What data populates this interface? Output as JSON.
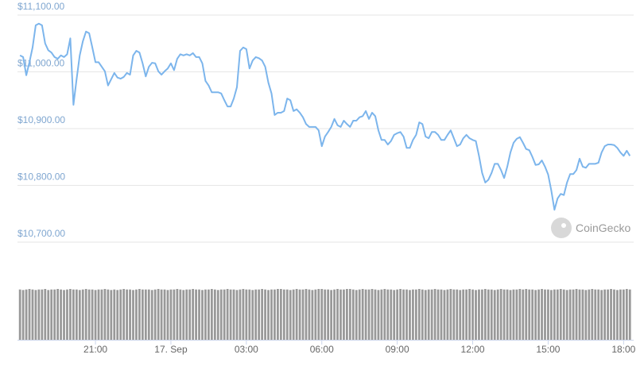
{
  "chart_data": {
    "type": "line",
    "x": [
      0,
      0.125,
      0.25,
      0.375,
      0.5,
      0.625,
      0.75,
      0.875,
      1,
      1.125,
      1.25,
      1.375,
      1.5,
      1.625,
      1.75,
      1.875,
      2,
      2.125,
      2.25,
      2.375,
      2.5,
      2.625,
      2.75,
      2.875,
      3,
      3.125,
      3.25,
      3.375,
      3.5,
      3.625,
      3.75,
      3.875,
      4,
      4.125,
      4.25,
      4.375,
      4.5,
      4.625,
      4.75,
      4.875,
      5,
      5.125,
      5.25,
      5.375,
      5.5,
      5.625,
      5.75,
      5.875,
      6,
      6.125,
      6.25,
      6.375,
      6.5,
      6.625,
      6.75,
      6.875,
      7,
      7.125,
      7.25,
      7.375,
      7.5,
      7.625,
      7.75,
      7.875,
      8,
      8.125,
      8.25,
      8.375,
      8.5,
      8.625,
      8.75,
      8.875,
      9,
      9.125,
      9.25,
      9.375,
      9.5,
      9.625,
      9.75,
      9.875,
      10,
      10.125,
      10.25,
      10.375,
      10.5,
      10.625,
      10.75,
      10.875,
      11,
      11.125,
      11.25,
      11.375,
      11.5,
      11.625,
      11.75,
      11.875,
      12,
      12.125,
      12.25,
      12.375,
      12.5,
      12.625,
      12.75,
      12.875,
      13,
      13.125,
      13.25,
      13.375,
      13.5,
      13.625,
      13.75,
      13.875,
      14,
      14.125,
      14.25,
      14.375,
      14.5,
      14.625,
      14.75,
      14.875,
      15,
      15.125,
      15.25,
      15.375,
      15.5,
      15.625,
      15.75,
      15.875,
      16,
      16.125,
      16.25,
      16.375,
      16.5,
      16.625,
      16.75,
      16.875,
      17,
      17.125,
      17.25,
      17.375,
      17.5,
      17.625,
      17.75,
      17.875,
      18,
      18.125,
      18.25,
      18.375,
      18.5,
      18.625,
      18.75,
      18.875,
      19,
      19.125,
      19.25,
      19.375,
      19.5,
      19.625,
      19.75,
      19.875,
      20,
      20.125,
      20.25,
      20.375,
      20.5,
      20.625,
      20.75,
      20.875,
      21,
      21.125,
      21.25,
      21.375,
      21.5,
      21.625,
      21.75,
      21.875,
      22,
      22.125,
      22.25,
      22.375,
      22.5,
      22.625,
      22.75,
      22.875,
      23,
      23.125,
      23.25,
      23.375,
      23.5,
      23.625,
      23.75,
      23.875,
      24,
      24.125,
      24.25
    ],
    "series": [
      {
        "color": "#7cb5ec",
        "values": [
          11029,
          11026,
          10994,
          11017,
          11043,
          11082,
          11085,
          11082,
          11050,
          11038,
          11034,
          11026,
          11023,
          11029,
          11026,
          11031,
          11059,
          10942,
          10987,
          11029,
          11054,
          11071,
          11068,
          11043,
          11017,
          11017,
          11009,
          11001,
          10976,
          10987,
          10998,
          10990,
          10988,
          10991,
          10998,
          10995,
          11029,
          11037,
          11034,
          11015,
          10992,
          11009,
          11016,
          11015,
          11001,
          10995,
          11001,
          11006,
          11015,
          11003,
          11023,
          11031,
          11029,
          11031,
          11029,
          11033,
          11026,
          11026,
          11015,
          10984,
          10976,
          10964,
          10964,
          10964,
          10962,
          10950,
          10939,
          10939,
          10953,
          10973,
          11037,
          11043,
          11040,
          11006,
          11020,
          11026,
          11024,
          11020,
          11009,
          10981,
          10962,
          10924,
          10928,
          10928,
          10931,
          10953,
          10950,
          10931,
          10934,
          10928,
          10920,
          10908,
          10903,
          10903,
          10903,
          10897,
          10869,
          10886,
          10894,
          10903,
          10917,
          10906,
          10903,
          10914,
          10908,
          10903,
          10914,
          10914,
          10920,
          10922,
          10931,
          10917,
          10928,
          10922,
          10897,
          10880,
          10880,
          10872,
          10878,
          10889,
          10892,
          10894,
          10886,
          10866,
          10866,
          10880,
          10889,
          10911,
          10908,
          10886,
          10883,
          10894,
          10894,
          10889,
          10880,
          10880,
          10889,
          10897,
          10883,
          10869,
          10872,
          10883,
          10889,
          10883,
          10880,
          10878,
          10852,
          10822,
          10805,
          10810,
          10822,
          10838,
          10838,
          10827,
          10813,
          10833,
          10858,
          10875,
          10882,
          10885,
          10875,
          10864,
          10862,
          10850,
          10836,
          10837,
          10844,
          10833,
          10819,
          10791,
          10757,
          10777,
          10785,
          10783,
          10805,
          10820,
          10820,
          10827,
          10847,
          10833,
          10831,
          10838,
          10838,
          10838,
          10840,
          10858,
          10869,
          10872,
          10872,
          10871,
          10866,
          10858,
          10852,
          10861,
          10852
        ]
      }
    ],
    "volume": {
      "color": "#999999",
      "lim": [
        0,
        100
      ],
      "values": [
        96,
        95,
        96,
        97,
        96,
        95,
        96,
        96,
        97,
        95,
        96,
        96,
        97,
        96,
        95,
        96,
        97,
        96,
        96,
        95,
        96,
        97,
        96,
        96,
        95,
        96,
        96,
        97,
        96,
        95,
        96,
        95,
        96,
        97,
        96,
        96,
        95,
        96,
        97,
        96,
        96,
        96,
        95,
        96,
        97,
        96,
        96,
        95,
        96,
        96,
        97,
        96,
        95,
        96,
        96,
        97,
        96,
        96,
        95,
        96,
        96,
        97,
        96,
        95,
        96,
        96,
        97,
        96,
        96,
        95,
        96,
        97,
        96,
        96,
        95,
        96,
        96,
        97,
        96,
        95,
        96,
        96,
        97,
        97,
        96,
        96,
        95,
        96,
        97,
        96,
        96,
        97,
        96,
        95,
        96,
        97,
        97,
        96,
        96,
        95,
        96,
        97,
        96,
        96,
        97,
        97,
        96,
        95,
        96,
        97,
        96,
        96,
        97,
        96,
        95,
        96,
        97,
        96,
        96,
        95,
        96,
        97,
        96,
        96,
        95,
        96,
        96,
        97,
        96,
        95,
        96,
        96,
        97,
        96,
        96,
        95,
        96,
        97,
        96,
        96,
        95,
        96,
        96,
        97,
        96,
        95,
        96,
        96,
        97,
        96,
        96,
        95,
        96,
        97,
        96,
        96,
        95,
        96,
        96,
        97,
        96,
        97,
        96,
        96,
        95,
        96,
        97,
        96,
        96,
        95,
        96,
        96,
        97,
        96,
        95,
        96,
        96,
        97,
        96,
        96,
        95,
        96,
        97,
        96,
        96,
        95,
        96,
        96,
        97,
        96,
        95,
        96,
        96,
        97,
        96
      ]
    },
    "xlim": [
      -0.1,
      24.4
    ],
    "xticks": [
      {
        "value": 3,
        "label": "21:00"
      },
      {
        "value": 6,
        "label": "17. Sep"
      },
      {
        "value": 9,
        "label": "03:00"
      },
      {
        "value": 12,
        "label": "06:00"
      },
      {
        "value": 15,
        "label": "09:00"
      },
      {
        "value": 18,
        "label": "12:00"
      },
      {
        "value": 21,
        "label": "15:00"
      },
      {
        "value": 24,
        "label": "18:00"
      }
    ],
    "ylim": [
      10700,
      11100
    ],
    "yticks": [
      {
        "value": 10700,
        "label": "$10,700.00"
      },
      {
        "value": 10800,
        "label": "$10,800.00"
      },
      {
        "value": 10900,
        "label": "$10,900.00"
      },
      {
        "value": 11000,
        "label": "$11,000.00"
      },
      {
        "value": 11100,
        "label": "$11,100.00"
      }
    ],
    "grid": true,
    "watermark": "CoinGecko"
  }
}
